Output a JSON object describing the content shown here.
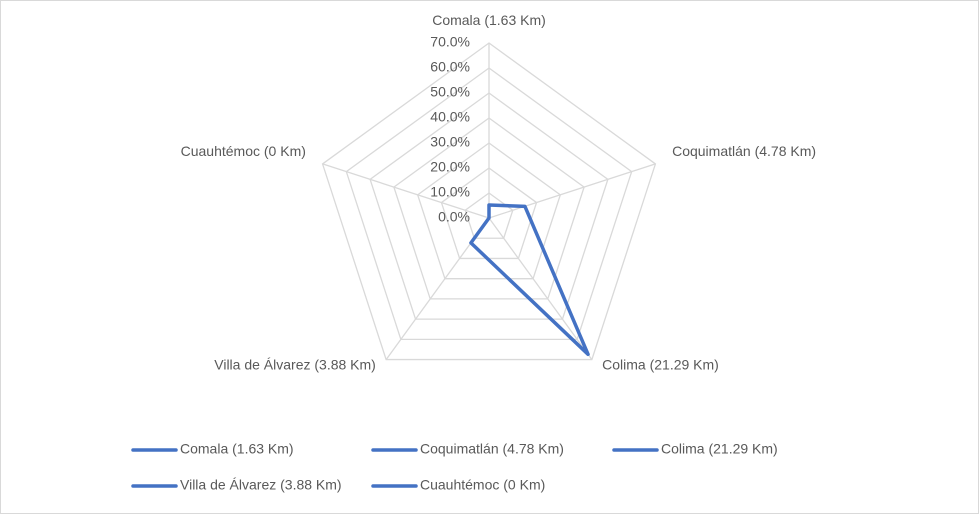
{
  "chart_data": {
    "type": "radar",
    "categories": [
      "Comala (1.63 Km)",
      "Coquimatlán (4.78 Km)",
      "Colima (21.29 Km)",
      "Villa de Álvarez (3.88 Km)",
      "Cuauhtémoc (0 Km)"
    ],
    "series": [
      {
        "color": "#4472c4",
        "values": [
          5.2,
          15.1,
          67.4,
          12.3,
          0
        ]
      }
    ],
    "ylim": [
      0,
      70
    ],
    "yticks": [
      {
        "value": 0,
        "label": "0.0%"
      },
      {
        "value": 10,
        "label": "10.0%"
      },
      {
        "value": 20,
        "label": "20.0%"
      },
      {
        "value": 30,
        "label": "30.0%"
      },
      {
        "value": 40,
        "label": "40.0%"
      },
      {
        "value": 50,
        "label": "50.0%"
      },
      {
        "value": 60,
        "label": "60.0%"
      },
      {
        "value": 70,
        "label": "70.0%"
      }
    ],
    "grid": true
  }
}
